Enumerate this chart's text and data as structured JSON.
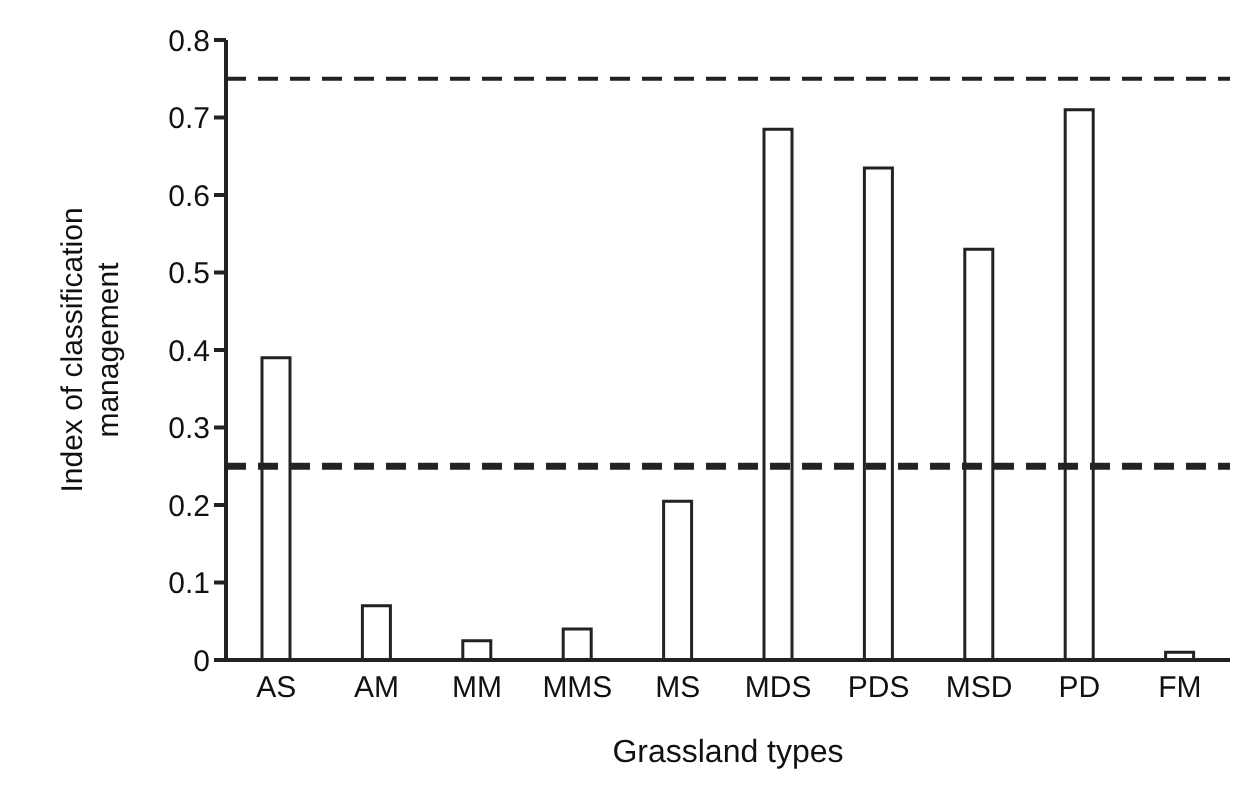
{
  "chart_data": {
    "type": "bar",
    "xlabel": "Grassland types",
    "ylabel": "Index of classification management",
    "categories": [
      "AS",
      "AM",
      "MM",
      "MMS",
      "MS",
      "MDS",
      "PDS",
      "MSD",
      "PD",
      "FM"
    ],
    "values": [
      0.39,
      0.07,
      0.025,
      0.04,
      0.205,
      0.685,
      0.635,
      0.53,
      0.71,
      0.01
    ],
    "color": "#ffffff",
    "ylim": [
      0,
      0.8
    ],
    "yticks": [
      0,
      0.1,
      0.2,
      0.3,
      0.4,
      0.5,
      0.6,
      0.7,
      0.8
    ],
    "grid": false,
    "ref_lines": [
      {
        "axis": "y",
        "value": 0.75,
        "line_style": "dashed"
      },
      {
        "axis": "y",
        "value": 0.25,
        "line_style": "dashed"
      }
    ]
  }
}
